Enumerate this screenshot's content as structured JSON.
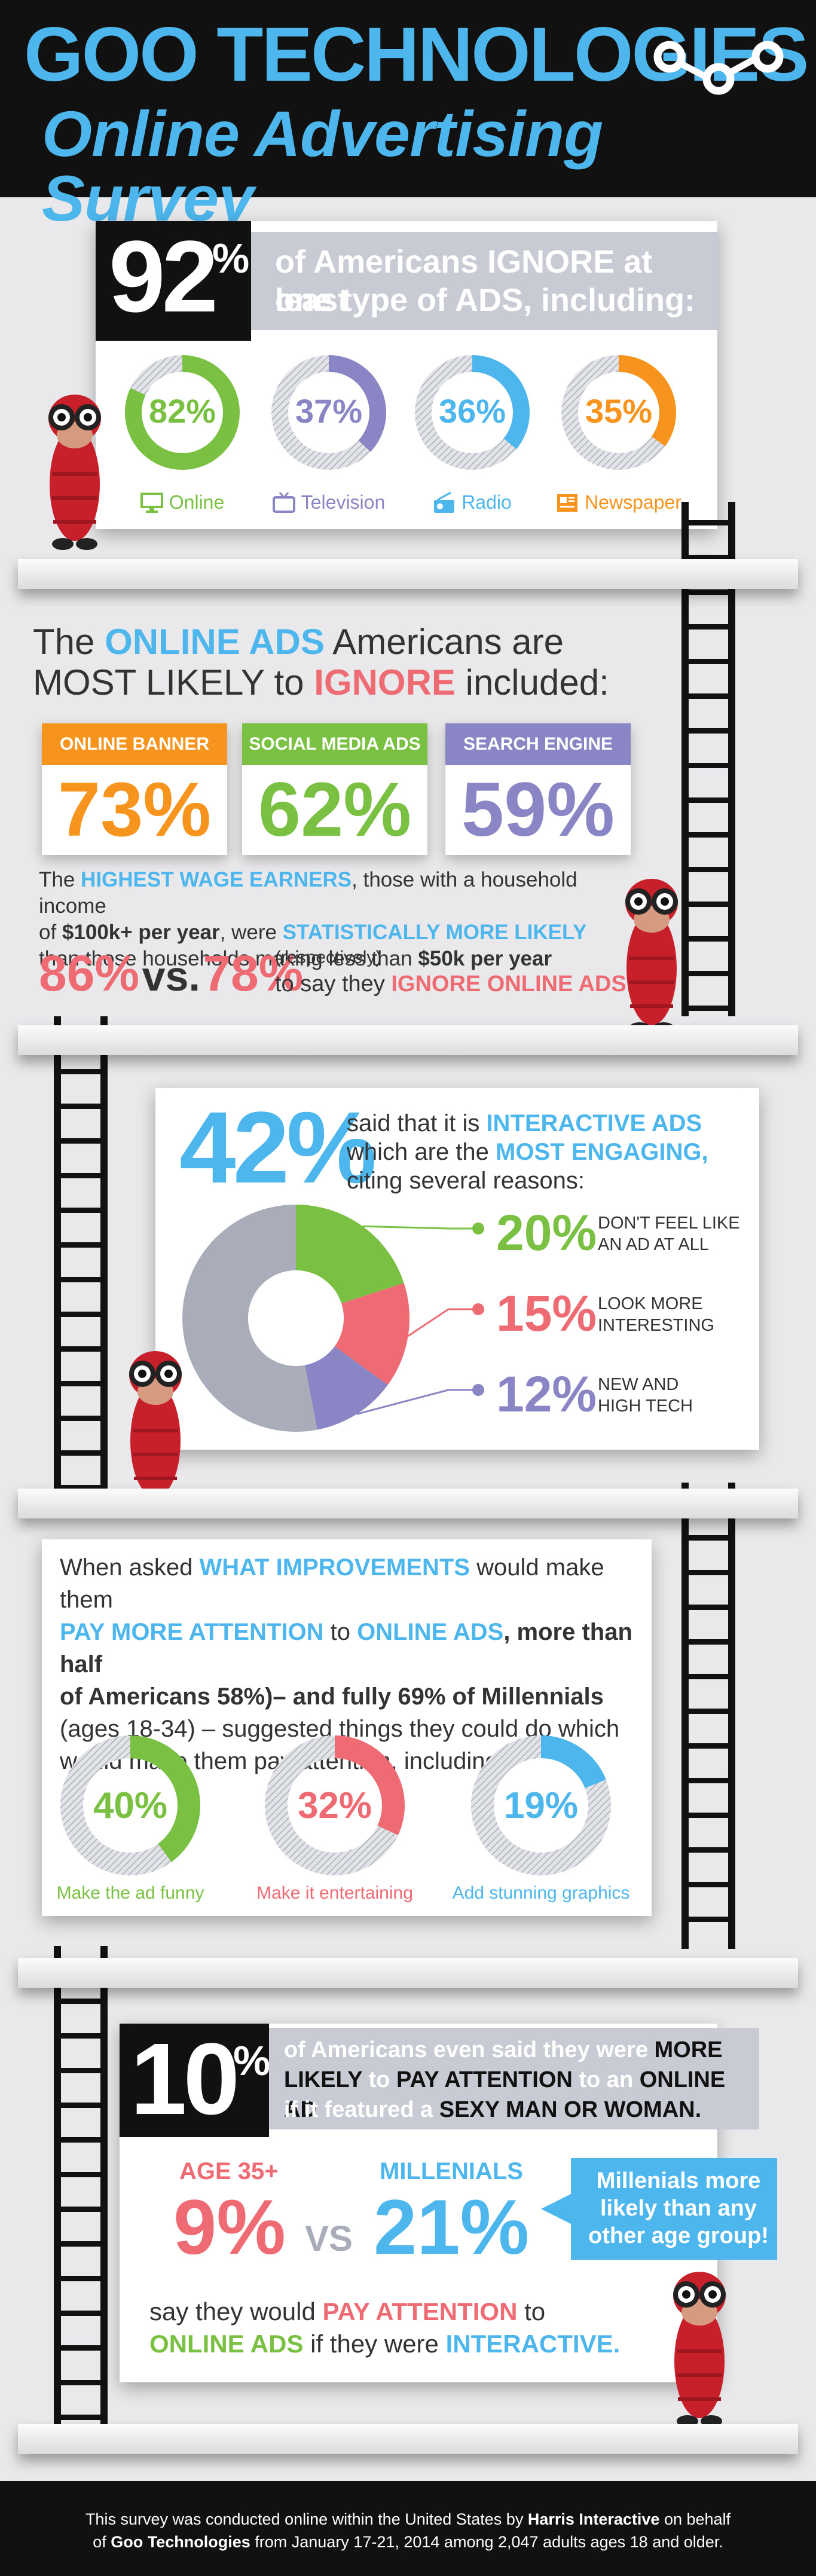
{
  "header": {
    "title_line1": "GOO TECHNOLOGIES",
    "title_line2": "Online Advertising Survey",
    "logo_icon": "goo-logo-icon"
  },
  "colors": {
    "blue": "#4db6ec",
    "green": "#7ac143",
    "pink": "#ef6b73",
    "orange": "#f7941e",
    "purple": "#8a85c5",
    "grey": "#a9adb9",
    "dark": "#111111"
  },
  "section1": {
    "big_stat": "92",
    "pct_sign": "%",
    "banner": "of Americans IGNORE at least one type of ADS, including:",
    "banner_line1": "of Americans IGNORE at least",
    "banner_line2": "one type of ADS, including:",
    "items": [
      {
        "pct": 82,
        "label": "82%",
        "name": "Online",
        "color": "#7ac143",
        "icon": "monitor-icon"
      },
      {
        "pct": 37,
        "label": "37%",
        "name": "Television",
        "color": "#8a85c5",
        "icon": "tv-icon"
      },
      {
        "pct": 36,
        "label": "36%",
        "name": "Radio",
        "color": "#4db6ec",
        "icon": "radio-icon"
      },
      {
        "pct": 35,
        "label": "35%",
        "name": "Newspaper",
        "color": "#f7941e",
        "icon": "newspaper-icon"
      }
    ]
  },
  "section2": {
    "heading_part1": "The ",
    "heading_part2": "ONLINE ADS",
    "heading_part3": " Americans are",
    "heading_line2_part1": "MOST LIKELY",
    "heading_line2_part2": " to ",
    "heading_line2_part3": "IGNORE",
    "heading_line2_part4": " included:",
    "ads": [
      {
        "title": "ONLINE BANNER ADS",
        "value": "73%",
        "color": "#f7941e"
      },
      {
        "title": "SOCIAL MEDIA ADS",
        "value": "62%",
        "color": "#7ac143"
      },
      {
        "title": "SEARCH ENGINE ADS",
        "value": "59%",
        "color": "#8a85c5"
      }
    ],
    "para_line1_a": "The ",
    "para_line1_b": "HIGHEST WAGE EARNERS",
    "para_line1_c": ", those with a household income",
    "para_line2_a": "of ",
    "para_line2_b": "$100k+ per year",
    "para_line2_c": ", were ",
    "para_line2_d": "STATISTICALLY MORE LIKELY",
    "para_line3_a": "than those households making less than ",
    "para_line3_b": "$50k per year",
    "stat_a": "86%",
    "vs": "vs.",
    "stat_b": "78%",
    "respectively": "(respectively)",
    "tail_a": "to say they ",
    "tail_b": "IGNORE ONLINE ADS",
    "tail_c": "."
  },
  "section3": {
    "big_stat": "42%",
    "intro_line1_a": "said that it is ",
    "intro_line1_b": "INTERACTIVE ADS",
    "intro_line2_a": "which are the ",
    "intro_line2_b": "MOST ENGAGING,",
    "intro_line3": "citing several reasons:",
    "chart_data": {
      "type": "pie",
      "title": "",
      "slices": [
        {
          "label": "DON'T FEEL LIKE AN AD AT ALL",
          "value": 20,
          "color": "#7ac143"
        },
        {
          "label": "LOOK MORE INTERESTING",
          "value": 15,
          "color": "#ef6b73"
        },
        {
          "label": "NEW AND HIGH TECH",
          "value": 12,
          "color": "#8a85c5"
        },
        {
          "label": "",
          "value": 53,
          "color": "#a9adb9"
        }
      ]
    },
    "reasons": [
      {
        "pct": "20%",
        "line1": "DON'T FEEL LIKE",
        "line2": "AN AD AT ALL",
        "color": "#7ac143"
      },
      {
        "pct": "15%",
        "line1": "LOOK MORE",
        "line2": "INTERESTING",
        "color": "#ef6b73"
      },
      {
        "pct": "12%",
        "line1": "NEW AND",
        "line2": "HIGH TECH",
        "color": "#8a85c5"
      }
    ]
  },
  "section4": {
    "l1_a": "When asked ",
    "l1_b": "WHAT IMPROVEMENTS",
    "l1_c": " would make them",
    "l2_a": "PAY MORE ATTENTION",
    "l2_b": " to ",
    "l2_c": "ONLINE ADS",
    "l2_d": ", more than half",
    "l3": "of Americans 58%)– and fully 69% of Millennials",
    "l4": "(ages 18-34) – suggested things they could do which",
    "l5": "would make them pay attention, including:",
    "items": [
      {
        "pct": 40,
        "label": "40%",
        "caption": "Make the ad funny",
        "color": "#7ac143"
      },
      {
        "pct": 32,
        "label": "32%",
        "caption": "Make it entertaining",
        "color": "#ef6b73"
      },
      {
        "pct": 19,
        "label": "19%",
        "caption": "Add stunning graphics",
        "color": "#4db6ec"
      }
    ]
  },
  "section5": {
    "big_stat": "10",
    "pct_sign": "%",
    "b1_a": "of Americans even said they were ",
    "b1_b": "MORE",
    "b2_a": "LIKELY",
    "b2_b": " to ",
    "b2_c": "PAY ATTENTION",
    "b2_d": " to an ",
    "b2_e": "ONLINE AD",
    "b3_a": "if it featured a ",
    "b3_b": "SEXY MAN OR WOMAN.",
    "group_a_label": "AGE 35+",
    "group_a_value": "9%",
    "vs": "VS",
    "group_b_label": "MILLENIALS",
    "group_b_value": "21%",
    "bubble": "Millenials more likely than any other age group!",
    "bubble_l1": "Millenials more",
    "bubble_l2": "likely than any",
    "bubble_l3": "other age group!",
    "tail1_a": "say they would ",
    "tail1_b": "PAY ATTENTION",
    "tail1_c": " to",
    "tail2_a": "ONLINE ADS",
    "tail2_b": " if they were ",
    "tail2_c": "INTERACTIVE."
  },
  "footer": {
    "l1_a": "This survey was conducted online within the United States by ",
    "l1_b": "Harris Interactive",
    "l1_c": " on behalf",
    "l2_a": "of ",
    "l2_b": "Goo Technologies",
    "l2_c": " from January 17-21, 2014 among 2,047 adults ages 18 and older."
  }
}
